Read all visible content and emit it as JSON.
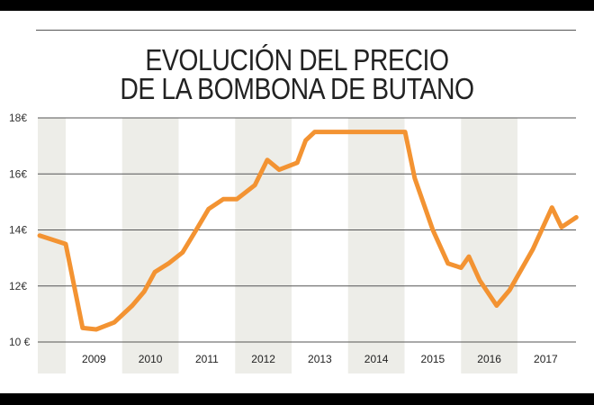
{
  "chart_data": {
    "type": "line",
    "title": [
      "EVOLUCIÓN DEL PRECIO",
      "DE LA BOMBONA DE BUTANO"
    ],
    "xlabel": "",
    "ylabel": "",
    "ylim": [
      10,
      18
    ],
    "xlim": [
      2008.5,
      2018.0
    ],
    "yticks": [
      {
        "value": 18,
        "label": "18€"
      },
      {
        "value": 16,
        "label": "16€"
      },
      {
        "value": 14,
        "label": "14€"
      },
      {
        "value": 12,
        "label": "12€"
      },
      {
        "value": 10,
        "label": "10 €"
      }
    ],
    "xticks": [
      "2009",
      "2010",
      "2011",
      "2012",
      "2013",
      "2014",
      "2015",
      "2016",
      "2017"
    ],
    "grid": "horizontal",
    "shaded_years": [
      "2008",
      "2010",
      "2012",
      "2014",
      "2016"
    ],
    "colors": {
      "line": "#F39332",
      "stripe": "#EDEDE8",
      "grid": "#555555"
    },
    "series": [
      {
        "x": [
          2008.54,
          2009.0,
          2009.3,
          2009.54,
          2009.86,
          2010.18,
          2010.39,
          2010.58,
          2010.82,
          2011.07,
          2011.31,
          2011.53,
          2011.79,
          2012.03,
          2012.35,
          2012.57,
          2012.78,
          2013.1,
          2013.25,
          2013.41,
          2015.01,
          2015.18,
          2015.5,
          2015.77,
          2016.0,
          2016.14,
          2016.33,
          2016.63,
          2016.86,
          2017.27,
          2017.61,
          2017.78,
          2018.04
        ],
        "y": [
          13.8,
          13.5,
          10.5,
          10.45,
          10.7,
          11.3,
          11.8,
          12.5,
          12.8,
          13.2,
          14.0,
          14.75,
          15.1,
          15.1,
          15.6,
          16.5,
          16.15,
          16.4,
          17.2,
          17.5,
          17.5,
          15.85,
          14.0,
          12.8,
          12.65,
          13.05,
          12.2,
          11.3,
          11.85,
          13.3,
          14.8,
          14.1,
          14.45
        ]
      }
    ]
  }
}
